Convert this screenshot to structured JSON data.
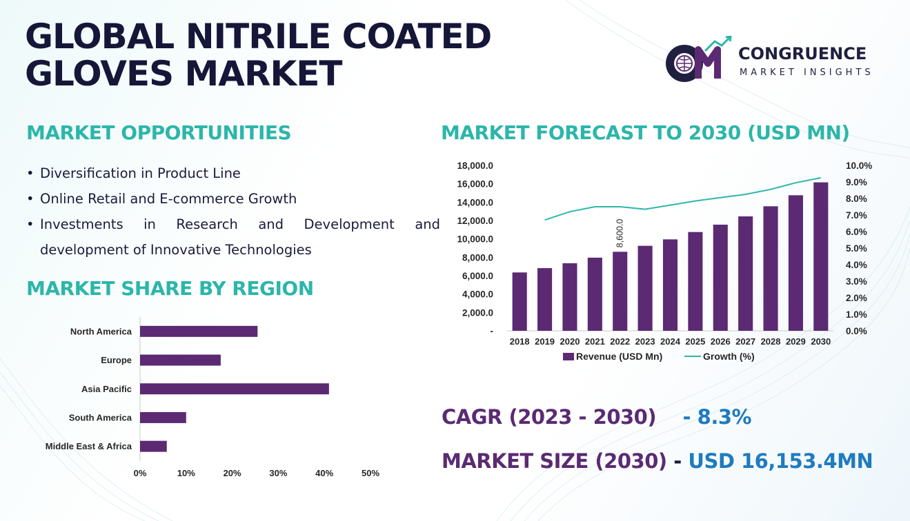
{
  "title_line1": "GLOBAL NITRILE COATED",
  "title_line2": "GLOVES MARKET",
  "logo": {
    "name": "CONGRUENCE",
    "subtitle": "MARKET INSIGHTS",
    "monogram": "CM"
  },
  "sections": {
    "opportunities": "MARKET OPPORTUNITIES",
    "share": "MARKET SHARE BY REGION",
    "forecast": "MARKET FORECAST TO 2030 (USD MN)"
  },
  "opportunities": [
    "Diversification in Product Line",
    "Online Retail and E-commerce Growth",
    "Investments in Research and Development and development of Innovative Technologies"
  ],
  "stats": {
    "cagr_label": "CAGR (2023 - 2030)",
    "cagr_value": "- 8.3%",
    "size_label": "MARKET SIZE (2030)",
    "size_value": "USD 16,153.4MN"
  },
  "colors": {
    "bar": "#5b2a73",
    "line": "#2cb6aa",
    "heading": "#2cb6aa",
    "accent_blue": "#1e7bbf"
  },
  "chart_data": [
    {
      "type": "bar",
      "orientation": "horizontal",
      "categories": [
        "North America",
        "Europe",
        "Asia Pacific",
        "South America",
        "Middle East & Africa"
      ],
      "values": [
        25.5,
        17.5,
        41,
        10,
        5.8
      ],
      "xlim": [
        0,
        50
      ],
      "xticks": [
        "0%",
        "10%",
        "20%",
        "30%",
        "40%",
        "50%"
      ],
      "grid": false
    },
    {
      "type": "bar",
      "categories": [
        "2018",
        "2019",
        "2020",
        "2021",
        "2022",
        "2023",
        "2024",
        "2025",
        "2026",
        "2027",
        "2028",
        "2029",
        "2030"
      ],
      "series": [
        {
          "name": "Revenue (USD Mn)",
          "type": "bar",
          "axis": "left",
          "values": [
            6350,
            6820,
            7350,
            7960,
            8600,
            9250,
            9950,
            10750,
            11550,
            12450,
            13550,
            14750,
            16153.4
          ]
        },
        {
          "name": "Growth (%)",
          "type": "line",
          "axis": "right",
          "values": [
            null,
            6.7,
            7.2,
            7.5,
            7.5,
            7.35,
            7.6,
            7.85,
            8.05,
            8.25,
            8.55,
            8.95,
            9.25
          ]
        }
      ],
      "data_labels": [
        {
          "category": "2022",
          "text": "8,600.0"
        }
      ],
      "ylim_left": [
        0,
        18000
      ],
      "yticks_left": [
        "-",
        "2,000.0",
        "4,000.0",
        "6,000.0",
        "8,000.0",
        "10,000.0",
        "12,000.0",
        "14,000.0",
        "16,000.0",
        "18,000.0"
      ],
      "ylim_right": [
        0,
        10
      ],
      "yticks_right": [
        "0.0%",
        "1.0%",
        "2.0%",
        "3.0%",
        "4.0%",
        "5.0%",
        "6.0%",
        "7.0%",
        "8.0%",
        "9.0%",
        "10.0%"
      ],
      "legend": "bottom",
      "grid": false
    }
  ]
}
